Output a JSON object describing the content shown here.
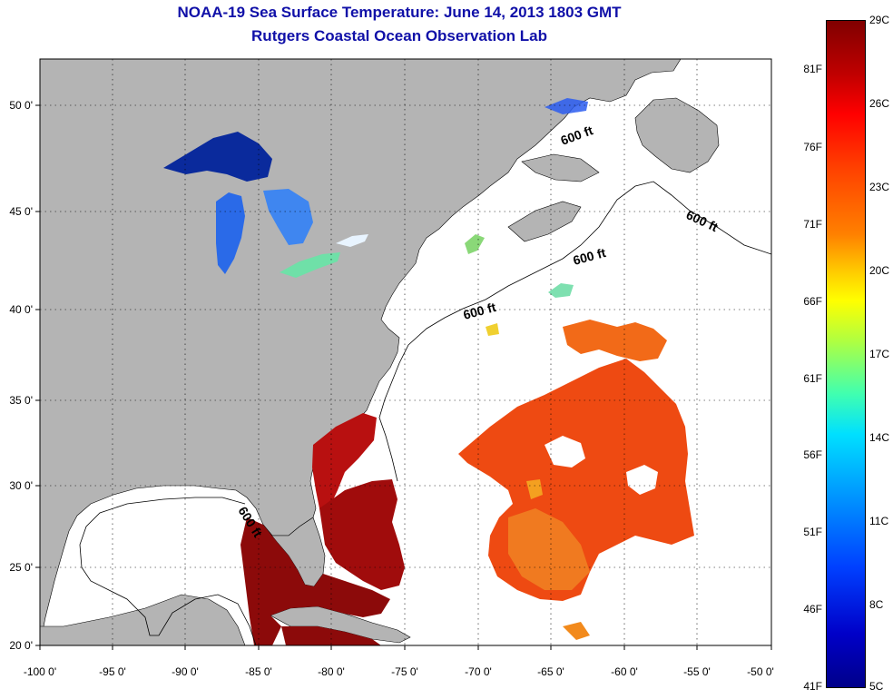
{
  "title": "NOAA-19 Sea Surface Temperature:  June 14, 2013 1803 GMT",
  "subtitle": "Rutgers Coastal Ocean Observation Lab",
  "x_ticks": [
    "-100 0'",
    "-95 0'",
    "-90 0'",
    "-85 0'",
    "-80 0'",
    "-75 0'",
    "-70 0'",
    "-65 0'",
    "-60 0'",
    "-55 0'",
    "-50 0'"
  ],
  "y_ticks": [
    "50 0'",
    "45 0'",
    "40 0'",
    "35 0'",
    "30 0'",
    "25 0'",
    "20 0'"
  ],
  "contour_label": "600 ft",
  "colorbar": {
    "f_labels": [
      "81F",
      "76F",
      "71F",
      "66F",
      "61F",
      "56F",
      "51F",
      "46F",
      "41F"
    ],
    "c_labels": [
      "29C",
      "26C",
      "23C",
      "20C",
      "17C",
      "14C",
      "11C",
      "8C",
      "5C"
    ]
  },
  "colors": {
    "land": "#b4b4b4",
    "ocean": "#ffffff",
    "title": "#1010a8"
  }
}
